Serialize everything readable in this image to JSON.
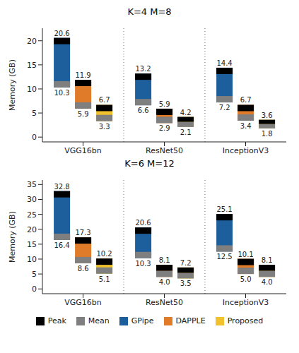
{
  "chart_data": [
    {
      "type": "bar",
      "title": "K=4 M=8",
      "y_label": "Memory (GB)",
      "categories": [
        "VGG16bn",
        "ResNet50",
        "InceptionV3"
      ],
      "ylim": [
        -1,
        22.6
      ],
      "yticks": [
        0,
        5,
        10,
        15,
        20
      ],
      "data_labels": true,
      "marks": {
        "peak": {
          "name": "Peak",
          "color": "#000000"
        },
        "mean": {
          "name": "Mean",
          "color": "#7f7f7f"
        }
      },
      "series": [
        {
          "name": "GPipe",
          "color": "#1c5f9c",
          "peak": [
            20.6,
            13.2,
            14.4
          ],
          "mean": [
            10.3,
            6.6,
            7.2
          ],
          "peak_labels": [
            "20.6",
            "13.2",
            "14.4"
          ],
          "mean_labels": [
            "10.3",
            "6.6",
            "7.2"
          ]
        },
        {
          "name": "DAPPLE",
          "color": "#e07b2a",
          "peak": [
            11.9,
            5.9,
            6.7
          ],
          "mean": [
            5.9,
            2.9,
            3.4
          ],
          "peak_labels": [
            "11.9",
            "5.9",
            "6.7"
          ],
          "mean_labels": [
            "5.9",
            "2.9",
            "3.4"
          ]
        },
        {
          "name": "Proposed",
          "color": "#f2c12e",
          "peak": [
            6.7,
            4.2,
            3.6
          ],
          "mean": [
            3.3,
            2.1,
            1.8
          ],
          "peak_labels": [
            "6.7",
            "4.2",
            "3.6"
          ],
          "mean_labels": [
            "3.3",
            "2.1",
            "1.8"
          ]
        }
      ]
    },
    {
      "type": "bar",
      "title": "K=6 M=12",
      "y_label": "Memory (GB)",
      "categories": [
        "VGG16bn",
        "ResNet50",
        "InceptionV3"
      ],
      "ylim": [
        -1.6,
        36.5
      ],
      "yticks": [
        0,
        5,
        10,
        15,
        20,
        25,
        30,
        35
      ],
      "data_labels": true,
      "legend": "bottom",
      "marks": {
        "peak": {
          "name": "Peak",
          "color": "#000000"
        },
        "mean": {
          "name": "Mean",
          "color": "#7f7f7f"
        }
      },
      "series": [
        {
          "name": "GPipe",
          "color": "#1c5f9c",
          "peak": [
            32.8,
            20.6,
            25.1
          ],
          "mean": [
            16.4,
            10.3,
            12.5
          ],
          "peak_labels": [
            "32.8",
            "20.6",
            "25.1"
          ],
          "mean_labels": [
            "16.4",
            "10.3",
            "12.5"
          ]
        },
        {
          "name": "DAPPLE",
          "color": "#e07b2a",
          "peak": [
            17.3,
            8.1,
            10.1
          ],
          "mean": [
            8.6,
            4.0,
            5.0
          ],
          "peak_labels": [
            "17.3",
            "8.1",
            "10.1"
          ],
          "mean_labels": [
            "8.6",
            "4.0",
            "5.0"
          ]
        },
        {
          "name": "Proposed",
          "color": "#f2c12e",
          "peak": [
            10.2,
            7.2,
            8.1
          ],
          "mean": [
            5.1,
            3.5,
            4.0
          ],
          "peak_labels": [
            "10.2",
            "7.2",
            "8.1"
          ],
          "mean_labels": [
            "5.1",
            "3.5",
            "4.0"
          ]
        }
      ]
    }
  ]
}
